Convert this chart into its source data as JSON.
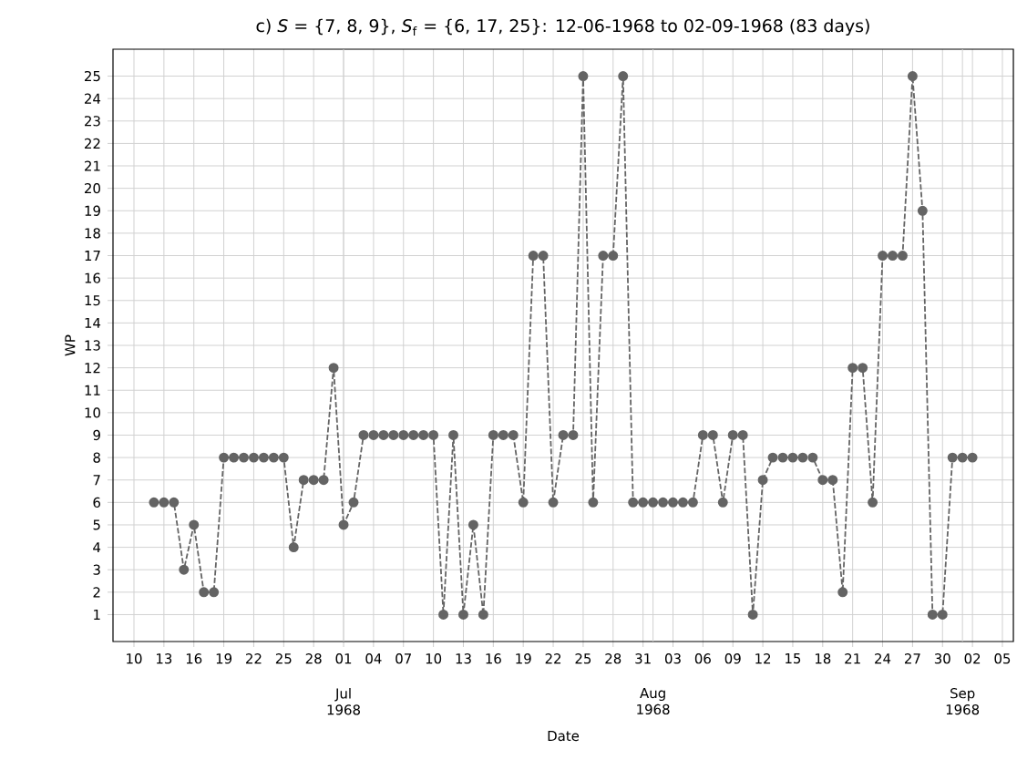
{
  "chart_data": {
    "type": "line",
    "title": "c) *S* = {7, 8, 9}, *S*$_{f}$ = {6, 17, 25}: 12-06-1968 to 02-09-1968 (83 days)",
    "xlabel": "Date",
    "ylabel": "WP",
    "x": [
      "1968-06-12",
      "1968-06-13",
      "1968-06-14",
      "1968-06-15",
      "1968-06-16",
      "1968-06-17",
      "1968-06-18",
      "1968-06-19",
      "1968-06-20",
      "1968-06-21",
      "1968-06-22",
      "1968-06-23",
      "1968-06-24",
      "1968-06-25",
      "1968-06-26",
      "1968-06-27",
      "1968-06-28",
      "1968-06-29",
      "1968-06-30",
      "1968-07-01",
      "1968-07-02",
      "1968-07-03",
      "1968-07-04",
      "1968-07-05",
      "1968-07-06",
      "1968-07-07",
      "1968-07-08",
      "1968-07-09",
      "1968-07-10",
      "1968-07-11",
      "1968-07-12",
      "1968-07-13",
      "1968-07-14",
      "1968-07-15",
      "1968-07-16",
      "1968-07-17",
      "1968-07-18",
      "1968-07-19",
      "1968-07-20",
      "1968-07-21",
      "1968-07-22",
      "1968-07-23",
      "1968-07-24",
      "1968-07-25",
      "1968-07-26",
      "1968-07-27",
      "1968-07-28",
      "1968-07-29",
      "1968-07-30",
      "1968-07-31",
      "1968-08-01",
      "1968-08-02",
      "1968-08-03",
      "1968-08-04",
      "1968-08-05",
      "1968-08-06",
      "1968-08-07",
      "1968-08-08",
      "1968-08-09",
      "1968-08-10",
      "1968-08-11",
      "1968-08-12",
      "1968-08-13",
      "1968-08-14",
      "1968-08-15",
      "1968-08-16",
      "1968-08-17",
      "1968-08-18",
      "1968-08-19",
      "1968-08-20",
      "1968-08-21",
      "1968-08-22",
      "1968-08-23",
      "1968-08-24",
      "1968-08-25",
      "1968-08-26",
      "1968-08-27",
      "1968-08-28",
      "1968-08-29",
      "1968-08-30",
      "1968-08-31",
      "1968-09-01",
      "1968-09-02"
    ],
    "series": [
      {
        "color": "#646464",
        "values": [
          6,
          6,
          6,
          3,
          5,
          2,
          2,
          8,
          8,
          8,
          8,
          8,
          8,
          8,
          4,
          7,
          7,
          7,
          12,
          5,
          6,
          9,
          9,
          9,
          9,
          9,
          9,
          9,
          9,
          1,
          9,
          1,
          5,
          1,
          9,
          9,
          9,
          6,
          17,
          17,
          6,
          9,
          9,
          25,
          6,
          17,
          17,
          25,
          6,
          6,
          6,
          6,
          6,
          6,
          6,
          9,
          9,
          6,
          9,
          9,
          1,
          7,
          8,
          8,
          8,
          8,
          8,
          7,
          7,
          2,
          12,
          12,
          6,
          17,
          17,
          17,
          25,
          19,
          1,
          1,
          8,
          8,
          8
        ]
      }
    ],
    "xlim": [
      "1968-06-07T21:36",
      "1968-09-06T02:24"
    ],
    "ylim": [
      -0.2,
      26.2
    ],
    "xticks": [
      {
        "value": "1968-06-10",
        "label": "10"
      },
      {
        "value": "1968-06-13",
        "label": "13"
      },
      {
        "value": "1968-06-16",
        "label": "16"
      },
      {
        "value": "1968-06-19",
        "label": "19"
      },
      {
        "value": "1968-06-22",
        "label": "22"
      },
      {
        "value": "1968-06-25",
        "label": "25"
      },
      {
        "value": "1968-06-28",
        "label": "28"
      },
      {
        "value": "1968-07-01",
        "label": "01"
      },
      {
        "value": "1968-07-04",
        "label": "04"
      },
      {
        "value": "1968-07-07",
        "label": "07"
      },
      {
        "value": "1968-07-10",
        "label": "10"
      },
      {
        "value": "1968-07-13",
        "label": "13"
      },
      {
        "value": "1968-07-16",
        "label": "16"
      },
      {
        "value": "1968-07-19",
        "label": "19"
      },
      {
        "value": "1968-07-22",
        "label": "22"
      },
      {
        "value": "1968-07-25",
        "label": "25"
      },
      {
        "value": "1968-07-28",
        "label": "28"
      },
      {
        "value": "1968-07-31",
        "label": "31"
      },
      {
        "value": "1968-08-03",
        "label": "03"
      },
      {
        "value": "1968-08-06",
        "label": "06"
      },
      {
        "value": "1968-08-09",
        "label": "09"
      },
      {
        "value": "1968-08-12",
        "label": "12"
      },
      {
        "value": "1968-08-15",
        "label": "15"
      },
      {
        "value": "1968-08-18",
        "label": "18"
      },
      {
        "value": "1968-08-21",
        "label": "21"
      },
      {
        "value": "1968-08-24",
        "label": "24"
      },
      {
        "value": "1968-08-27",
        "label": "27"
      },
      {
        "value": "1968-08-30",
        "label": "30"
      },
      {
        "value": "1968-09-02",
        "label": "02"
      },
      {
        "value": "1968-09-05",
        "label": "05"
      }
    ],
    "annotations": [
      "Jul 1968",
      "Aug 1968",
      "Sep 1968"
    ],
    "yticks": [
      1,
      2,
      3,
      4,
      5,
      6,
      7,
      8,
      9,
      10,
      11,
      12,
      13,
      14,
      15,
      16,
      17,
      18,
      19,
      20,
      21,
      22,
      23,
      24,
      25
    ],
    "grid": true,
    "marker": "circle",
    "line_style": "dashed"
  }
}
